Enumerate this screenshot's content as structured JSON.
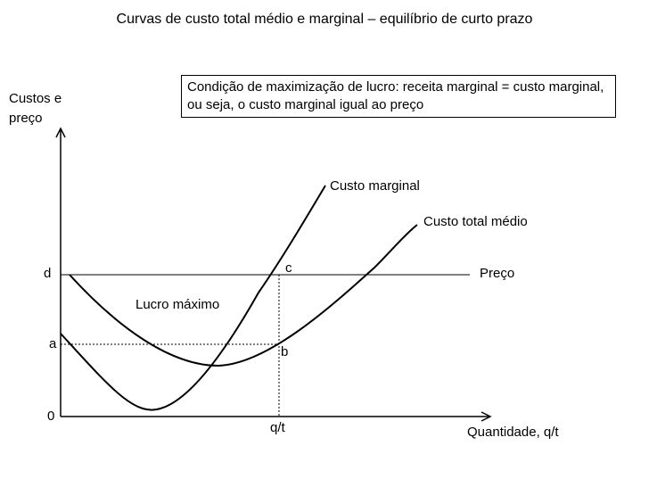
{
  "title": "Curvas de custo total médio e marginal – equilíbrio de curto prazo",
  "note": "Condição de maximização de lucro: receita marginal = custo marginal, ou seja, o custo marginal igual ao preço",
  "axes": {
    "y_label_line1": "Custos e",
    "y_label_line2": "preço",
    "x_label": "Quantidade, q/t",
    "origin": "0"
  },
  "labels": {
    "custo_marginal": "Custo marginal",
    "custo_total_medio": "Custo total médio",
    "preco": "Preço",
    "lucro_maximo": "Lucro máximo",
    "d": "d",
    "a": "a",
    "c": "c",
    "b": "b",
    "qt": "q/t"
  }
}
